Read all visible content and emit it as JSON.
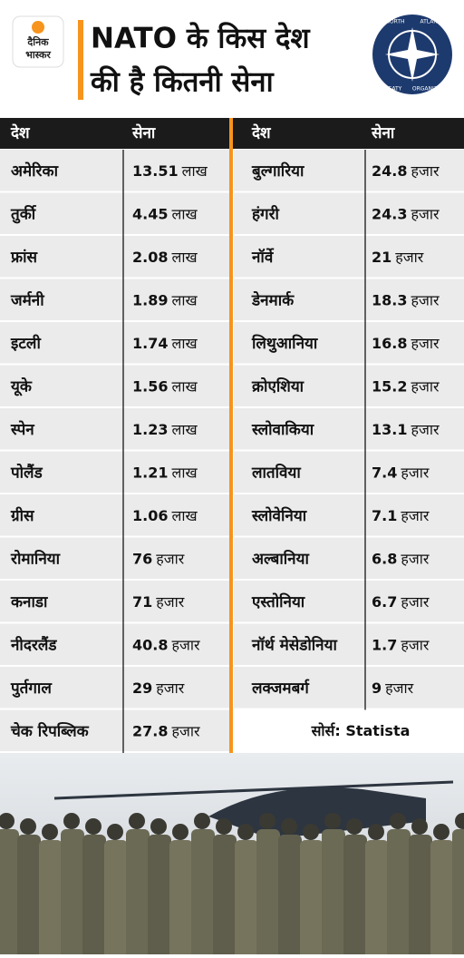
{
  "header": {
    "logo": [
      "दैनिक",
      "भास्कर"
    ],
    "title": [
      "NATO के किस देश",
      "की है कितनी सेना"
    ],
    "emblem": [
      "NORTH",
      "ATLANTIC",
      "TREATY",
      "ORGANIZATION"
    ]
  },
  "table": {
    "columns": [
      "देश",
      "सेना",
      "देश",
      "सेना"
    ],
    "left": [
      [
        "अमेरिका",
        "13.51",
        "लाख"
      ],
      [
        "तुर्की",
        "4.45",
        "लाख"
      ],
      [
        "फ्रांस",
        "2.08",
        "लाख"
      ],
      [
        "जर्मनी",
        "1.89",
        "लाख"
      ],
      [
        "इटली",
        "1.74",
        "लाख"
      ],
      [
        "यूके",
        "1.56",
        "लाख"
      ],
      [
        "स्पेन",
        "1.23",
        "लाख"
      ],
      [
        "पोलैंड",
        "1.21",
        "लाख"
      ],
      [
        "ग्रीस",
        "1.06",
        "लाख"
      ],
      [
        "रोमानिया",
        "76",
        "हजार"
      ],
      [
        "कनाडा",
        "71",
        "हजार"
      ],
      [
        "नीदरलैंड",
        "40.8",
        "हजार"
      ],
      [
        "पुर्तगाल",
        "29",
        "हजार"
      ],
      [
        "चेक रिपब्लिक",
        "27.8",
        "हजार"
      ]
    ],
    "right": [
      [
        "बुल्गारिया",
        "24.8",
        "हजार"
      ],
      [
        "हंगरी",
        "24.3",
        "हजार"
      ],
      [
        "नॉर्वे",
        "21",
        "हजार"
      ],
      [
        "डेनमार्क",
        "18.3",
        "हजार"
      ],
      [
        "लिथुआनिया",
        "16.8",
        "हजार"
      ],
      [
        "क्रोएशिया",
        "15.2",
        "हजार"
      ],
      [
        "स्लोवाकिया",
        "13.1",
        "हजार"
      ],
      [
        "लातविया",
        "7.4",
        "हजार"
      ],
      [
        "स्लोवेनिया",
        "7.1",
        "हजार"
      ],
      [
        "अल्बानिया",
        "6.8",
        "हजार"
      ],
      [
        "एस्तोनिया",
        "6.7",
        "हजार"
      ],
      [
        "नॉर्थ मेसेडोनिया",
        "1.7",
        "हजार"
      ],
      [
        "लक्जमबर्ग",
        "9",
        "हजार"
      ]
    ],
    "source": "सोर्स: Statista"
  }
}
